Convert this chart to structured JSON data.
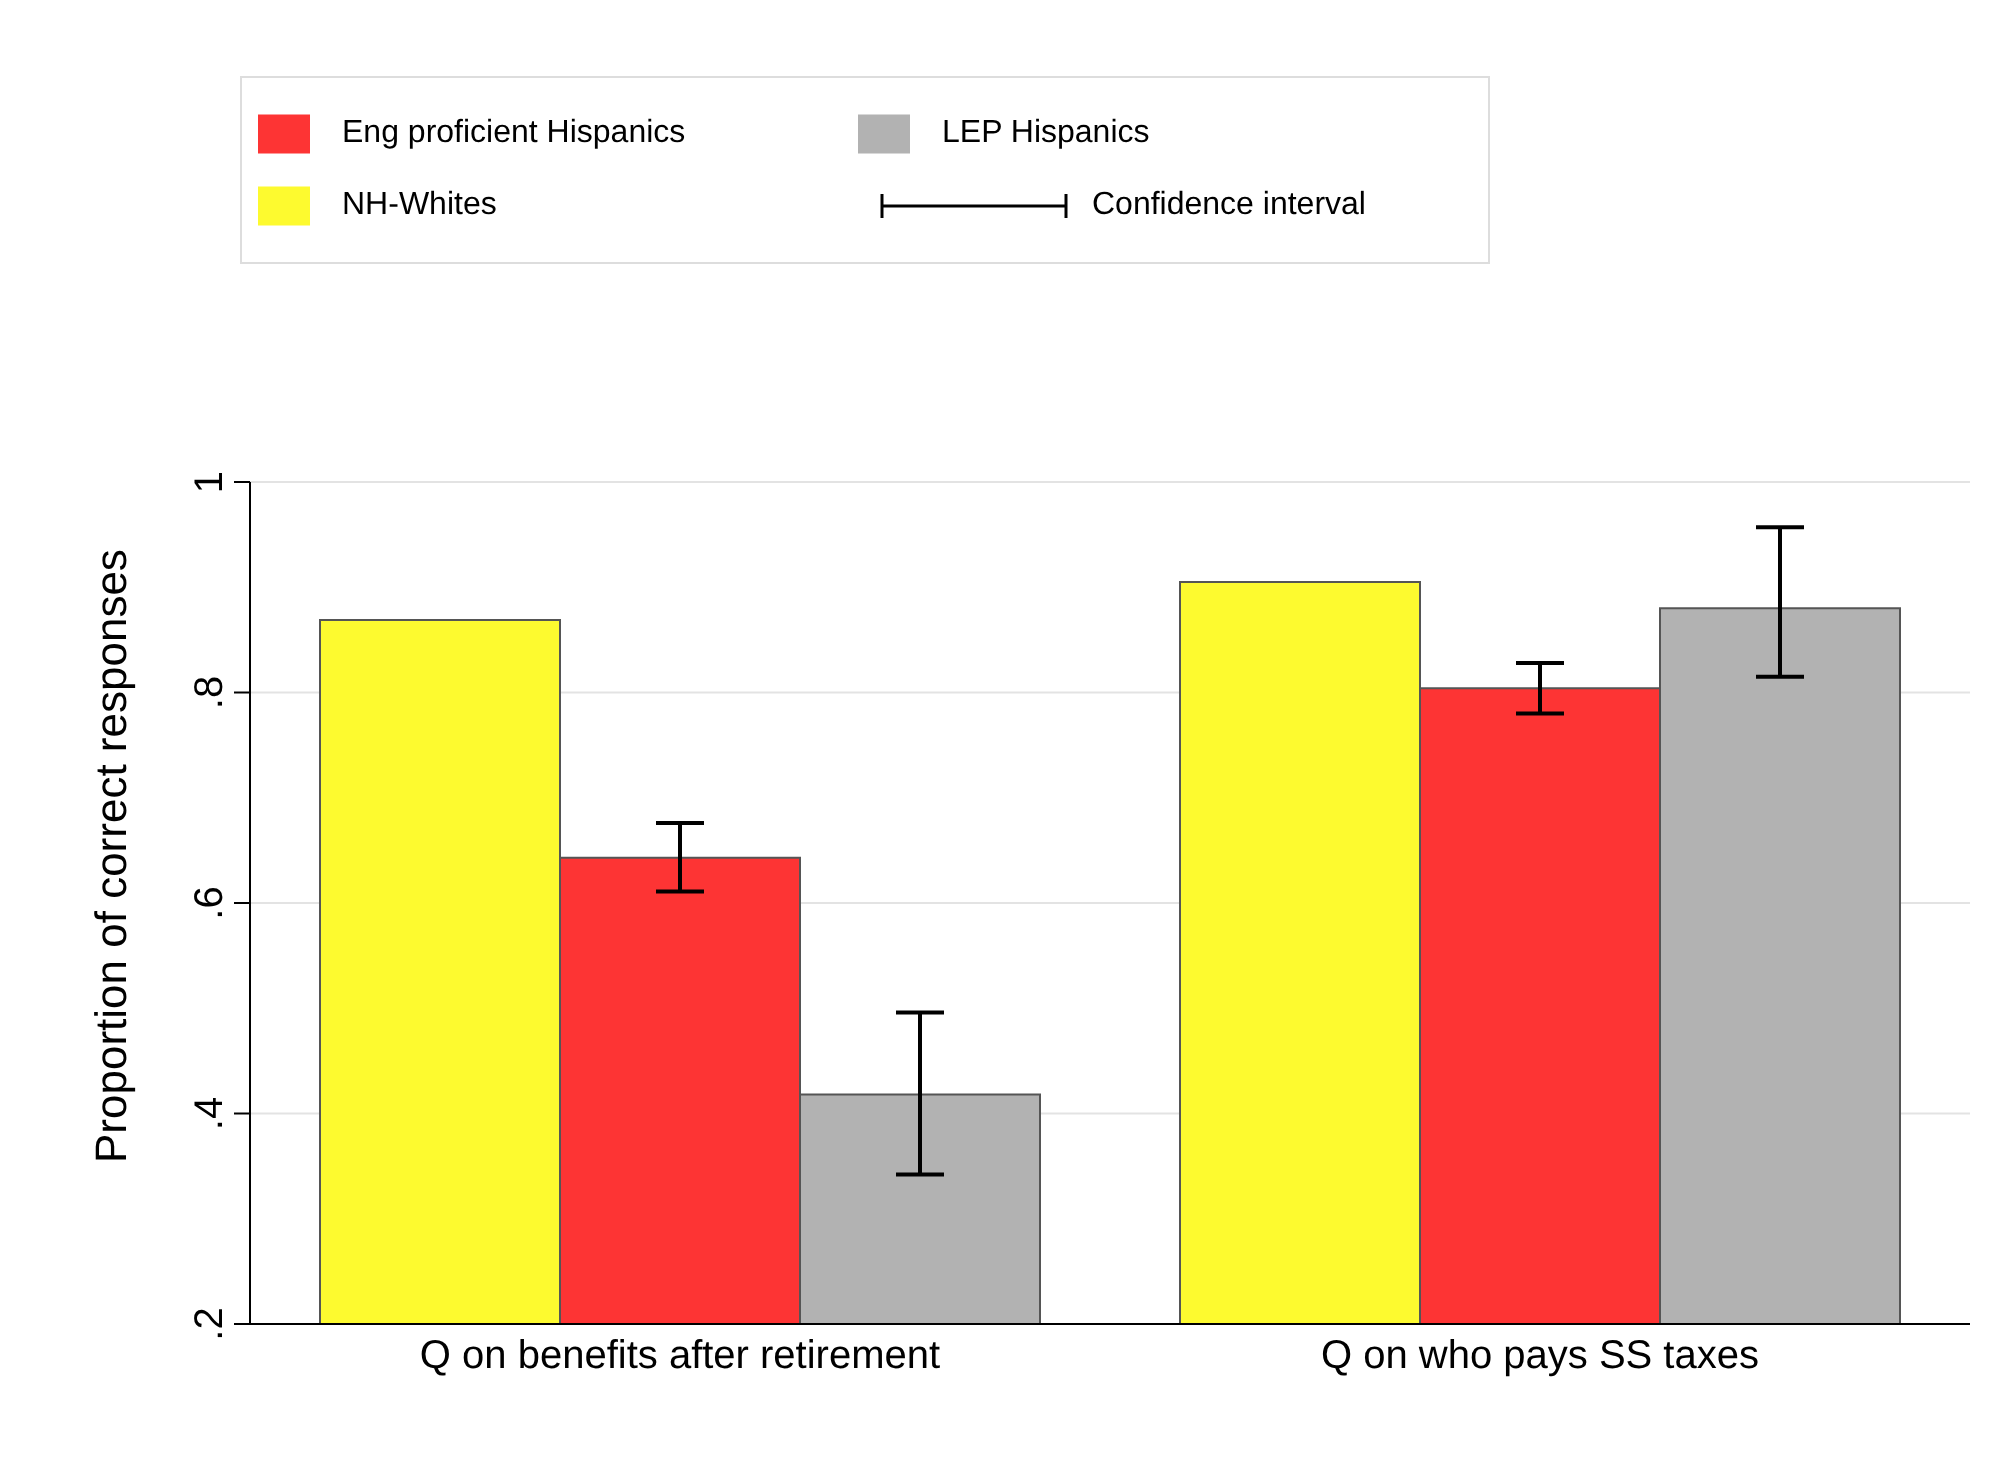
{
  "chart_data": {
    "type": "bar",
    "ylabel": "Proportion of correct responses",
    "categories": [
      "Q on benefits after retirement",
      "Q on who pays SS taxes"
    ],
    "series": [
      {
        "name": "NH-Whites",
        "color": "#fdfa2f",
        "values": [
          0.869,
          0.905
        ]
      },
      {
        "name": "Eng proficient Hispanics",
        "color": "#fd3434",
        "values": [
          0.643,
          0.804
        ],
        "errors": [
          [
            0.611,
            0.676
          ],
          [
            0.78,
            0.828
          ]
        ]
      },
      {
        "name": "LEP Hispanics",
        "color": "#b2b2b2",
        "values": [
          0.418,
          0.88
        ],
        "errors": [
          [
            0.342,
            0.496
          ],
          [
            0.815,
            0.957
          ]
        ]
      }
    ],
    "ylim": [
      0.2,
      1
    ],
    "yticks": [
      {
        "value": 0.2,
        "label": ".2"
      },
      {
        "value": 0.4,
        "label": ".4"
      },
      {
        "value": 0.6,
        "label": ".6"
      },
      {
        "value": 0.8,
        "label": ".8"
      },
      {
        "value": 1,
        "label": "1"
      }
    ],
    "grid": "y",
    "legend": "top",
    "annotations": [
      "Confidence interval"
    ]
  }
}
